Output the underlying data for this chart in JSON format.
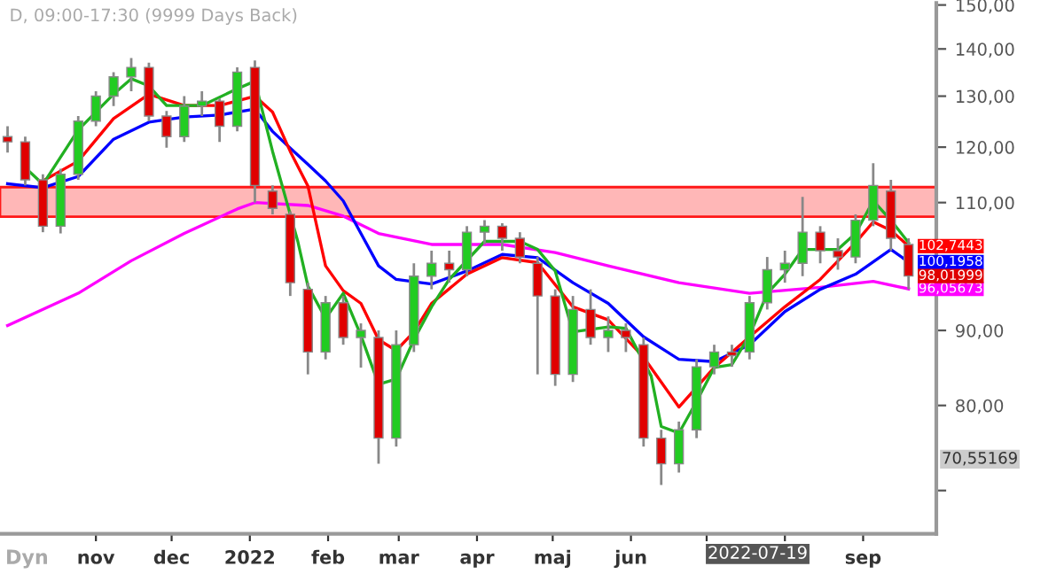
{
  "chart_data": {
    "type": "candlestick",
    "title": "D, 09:00-17:30 (9999 Days Back)",
    "x": [
      "2021-09-27",
      "2021-10-04",
      "2021-10-11",
      "2021-10-18",
      "2021-10-25",
      "2021-11-01",
      "2021-11-08",
      "2021-11-15",
      "2021-11-22",
      "2021-11-29",
      "2021-12-06",
      "2021-12-13",
      "2021-12-20",
      "2021-12-27",
      "2022-01-03",
      "2022-01-10",
      "2022-01-17",
      "2022-01-24",
      "2022-01-31",
      "2022-02-07",
      "2022-02-14",
      "2022-02-21",
      "2022-02-28",
      "2022-03-07",
      "2022-03-14",
      "2022-03-21",
      "2022-03-28",
      "2022-04-04",
      "2022-04-11",
      "2022-04-18",
      "2022-04-25",
      "2022-05-02",
      "2022-05-09",
      "2022-05-16",
      "2022-05-23",
      "2022-05-30",
      "2022-06-06",
      "2022-06-13",
      "2022-06-20",
      "2022-06-27",
      "2022-07-04",
      "2022-07-11",
      "2022-07-18",
      "2022-07-25",
      "2022-08-01",
      "2022-08-08",
      "2022-08-15",
      "2022-08-22",
      "2022-08-29",
      "2022-09-05",
      "2022-09-12",
      "2022-09-19"
    ],
    "ohlc": [
      [
        122,
        124,
        119,
        121
      ],
      [
        121,
        122,
        113,
        114
      ],
      [
        114,
        115,
        105,
        106
      ],
      [
        106,
        116,
        104.8,
        115
      ],
      [
        115,
        126,
        114,
        125
      ],
      [
        125,
        131,
        124,
        130
      ],
      [
        130,
        135,
        128,
        134
      ],
      [
        134,
        138,
        131,
        136
      ],
      [
        136,
        137,
        125,
        126
      ],
      [
        126,
        127,
        119.9,
        122
      ],
      [
        122,
        130,
        121,
        128
      ],
      [
        128,
        131,
        126,
        129
      ],
      [
        129,
        129.5,
        121,
        124
      ],
      [
        124,
        136,
        123,
        135
      ],
      [
        136,
        137.5,
        110,
        113
      ],
      [
        112,
        113,
        108,
        109
      ],
      [
        108,
        108.5,
        95,
        97
      ],
      [
        96,
        97,
        84,
        87
      ],
      [
        87,
        95,
        86,
        94
      ],
      [
        94,
        95,
        88,
        89
      ],
      [
        89,
        91,
        84.9,
        90
      ],
      [
        89,
        90,
        73,
        76
      ],
      [
        76,
        90,
        75,
        88
      ],
      [
        88,
        100,
        87,
        98
      ],
      [
        98,
        102,
        96,
        100
      ],
      [
        100,
        102,
        97,
        99
      ],
      [
        99,
        106,
        98,
        105
      ],
      [
        105,
        107,
        103,
        106
      ],
      [
        106,
        106.5,
        102,
        104
      ],
      [
        104,
        105,
        100,
        101
      ],
      [
        100,
        101,
        84,
        95
      ],
      [
        95,
        96,
        82.5,
        84
      ],
      [
        84,
        95,
        83,
        93
      ],
      [
        93,
        96,
        88,
        89
      ],
      [
        89,
        92,
        87,
        90
      ],
      [
        90,
        91,
        87,
        89
      ],
      [
        88,
        89,
        75,
        76
      ],
      [
        76,
        77,
        70.6,
        73
      ],
      [
        73,
        78,
        72,
        77
      ],
      [
        77,
        86,
        76,
        85
      ],
      [
        85,
        88,
        84,
        87
      ],
      [
        87,
        88,
        85,
        86.5
      ],
      [
        87,
        95,
        86,
        94
      ],
      [
        94,
        101,
        93,
        99
      ],
      [
        99,
        102,
        97,
        100
      ],
      [
        100,
        111,
        98,
        105
      ],
      [
        105,
        106,
        100,
        102
      ],
      [
        102,
        104,
        99,
        101
      ],
      [
        101,
        108,
        100,
        107
      ],
      [
        107,
        117,
        106,
        113
      ],
      [
        112,
        114,
        102,
        104
      ],
      [
        103,
        104,
        96,
        98.02
      ]
    ],
    "series": [
      {
        "type": "line",
        "color": "#ff00ff",
        "x": [
          "2021-09-27",
          "2021-10-25",
          "2021-11-15",
          "2021-12-06",
          "2021-12-27",
          "2022-01-03",
          "2022-01-24",
          "2022-02-07",
          "2022-02-21",
          "2022-03-14",
          "2022-04-11",
          "2022-05-02",
          "2022-05-23",
          "2022-06-20",
          "2022-07-18",
          "2022-08-15",
          "2022-09-05",
          "2022-09-19"
        ],
        "values": [
          90.7,
          95.4,
          100.4,
          104.8,
          108.9,
          110.0,
          109.5,
          107.7,
          104.8,
          103.0,
          103.0,
          101.7,
          99.6,
          97.0,
          95.4,
          96.3,
          97.2,
          96.06
        ],
        "value_labels": [
          null,
          null,
          null,
          null,
          null,
          null,
          null,
          null,
          null,
          null,
          null,
          null,
          null,
          null,
          null,
          null,
          null,
          "96,05673"
        ]
      },
      {
        "type": "line",
        "color": "#0000ff",
        "x": [
          "2021-09-27",
          "2021-10-11",
          "2021-10-25",
          "2021-11-08",
          "2021-11-22",
          "2021-12-06",
          "2021-12-20",
          "2022-01-03",
          "2022-01-10",
          "2022-01-17",
          "2022-01-24",
          "2022-01-31",
          "2022-02-07",
          "2022-02-14",
          "2022-02-21",
          "2022-02-28",
          "2022-03-14",
          "2022-03-28",
          "2022-04-11",
          "2022-04-25",
          "2022-05-09",
          "2022-05-23",
          "2022-06-06",
          "2022-06-20",
          "2022-07-04",
          "2022-07-18",
          "2022-08-01",
          "2022-08-15",
          "2022-08-29",
          "2022-09-12",
          "2022-09-19"
        ],
        "values": [
          113.3,
          112.6,
          114.6,
          121.5,
          124.8,
          125.8,
          126.2,
          127.4,
          123.0,
          119.8,
          116.8,
          113.8,
          110.3,
          104.8,
          99.6,
          97.5,
          96.8,
          98.8,
          101.4,
          100.9,
          97.0,
          93.9,
          89.1,
          86.0,
          85.7,
          88.0,
          92.7,
          96.0,
          98.3,
          102.2,
          100.2
        ],
        "value_labels": [
          null,
          null,
          null,
          null,
          null,
          null,
          null,
          null,
          null,
          null,
          null,
          null,
          null,
          null,
          null,
          null,
          null,
          null,
          null,
          null,
          null,
          null,
          null,
          null,
          null,
          null,
          null,
          null,
          null,
          null,
          "100,1958"
        ]
      },
      {
        "type": "line",
        "color": "#ff0000",
        "x": [
          "2021-10-11",
          "2021-10-25",
          "2021-11-08",
          "2021-11-22",
          "2021-12-06",
          "2021-12-20",
          "2022-01-03",
          "2022-01-10",
          "2022-01-17",
          "2022-01-24",
          "2022-01-31",
          "2022-02-07",
          "2022-02-14",
          "2022-02-21",
          "2022-02-28",
          "2022-03-07",
          "2022-03-14",
          "2022-03-28",
          "2022-04-11",
          "2022-04-25",
          "2022-05-09",
          "2022-05-23",
          "2022-06-06",
          "2022-06-20",
          "2022-07-04",
          "2022-07-18",
          "2022-08-01",
          "2022-08-15",
          "2022-08-29",
          "2022-09-05",
          "2022-09-12",
          "2022-09-19"
        ],
        "values": [
          113.8,
          117.4,
          125.5,
          130.4,
          128.1,
          128.1,
          130.0,
          126.8,
          119.2,
          112.9,
          99.6,
          95.8,
          93.9,
          88.7,
          87.2,
          89.8,
          93.9,
          98.3,
          100.9,
          100.1,
          93.4,
          91.5,
          86.3,
          79.8,
          84.9,
          89.1,
          93.4,
          97.5,
          103.3,
          106.7,
          105.3,
          102.74
        ],
        "value_labels": [
          null,
          null,
          null,
          null,
          null,
          null,
          null,
          null,
          null,
          null,
          null,
          null,
          null,
          null,
          null,
          null,
          null,
          null,
          null,
          null,
          null,
          null,
          null,
          null,
          null,
          null,
          null,
          null,
          null,
          null,
          null,
          "102,7443"
        ]
      },
      {
        "type": "line",
        "color": "#22b022",
        "x": [
          "2021-10-04",
          "2021-10-11",
          "2021-10-25",
          "2021-11-08",
          "2021-11-15",
          "2021-11-22",
          "2021-11-29",
          "2021-12-13",
          "2021-12-27",
          "2022-01-03",
          "2022-01-10",
          "2022-01-20",
          "2022-01-24",
          "2022-01-31",
          "2022-02-07",
          "2022-02-14",
          "2022-02-21",
          "2022-02-28",
          "2022-03-07",
          "2022-03-14",
          "2022-03-21",
          "2022-04-04",
          "2022-04-18",
          "2022-04-25",
          "2022-05-02",
          "2022-05-09",
          "2022-05-23",
          "2022-05-30",
          "2022-06-09",
          "2022-06-13",
          "2022-06-20",
          "2022-06-27",
          "2022-07-04",
          "2022-07-11",
          "2022-07-18",
          "2022-07-25",
          "2022-08-01",
          "2022-08-08",
          "2022-08-22",
          "2022-08-29",
          "2022-09-05",
          "2022-09-12",
          "2022-09-19"
        ],
        "values": [
          116.2,
          113.2,
          123.3,
          130.4,
          133.6,
          132.1,
          128.1,
          128.1,
          131.5,
          133.1,
          119.2,
          103.5,
          96.5,
          91.7,
          95.4,
          89.3,
          82.7,
          83.4,
          88.7,
          93.4,
          97.5,
          103.5,
          103.5,
          102.2,
          98.8,
          89.8,
          90.5,
          90.3,
          83.8,
          77.4,
          76.6,
          80.5,
          84.9,
          85.3,
          89.3,
          95.4,
          98.3,
          102.2,
          102.2,
          104.8,
          110.3,
          107.0,
          103.3
        ]
      }
    ],
    "log": true,
    "ylim": [
      65.4,
      150.5
    ],
    "yticks": [
      {
        "value": 70,
        "label": null
      },
      {
        "value": 80,
        "label": "80,00"
      },
      {
        "value": 90,
        "label": "90,00"
      },
      {
        "value": 100,
        "label": null
      },
      {
        "value": 110,
        "label": "110,00"
      },
      {
        "value": 120,
        "label": "120,00"
      },
      {
        "value": 130,
        "label": "130,00"
      },
      {
        "value": 140,
        "label": "140,00"
      },
      {
        "value": 150,
        "label": "150,00"
      }
    ],
    "xlim": [
      "2021-09-24",
      "2022-09-30"
    ],
    "xticks": [
      {
        "value": "2021-11-01",
        "label": "nov"
      },
      {
        "value": "2021-12-01",
        "label": "dec"
      },
      {
        "value": "2022-01-01",
        "label": "2022"
      },
      {
        "value": "2022-02-01",
        "label": "feb"
      },
      {
        "value": "2022-03-01",
        "label": "mar"
      },
      {
        "value": "2022-04-01",
        "label": "apr"
      },
      {
        "value": "2022-05-01",
        "label": "maj"
      },
      {
        "value": "2022-06-01",
        "label": "jun"
      },
      {
        "value": "2022-07-01",
        "label": null
      },
      {
        "value": "2022-08-01",
        "label": null
      },
      {
        "value": "2022-09-01",
        "label": "sep"
      }
    ],
    "bands": [
      {
        "axis": "y",
        "from": 107.6,
        "to": 112.7,
        "color": "#ffb0b0"
      }
    ],
    "grid": false,
    "annotations": [
      "98,01999",
      "70,55169",
      "2022-07-19",
      "Dyn"
    ]
  }
}
